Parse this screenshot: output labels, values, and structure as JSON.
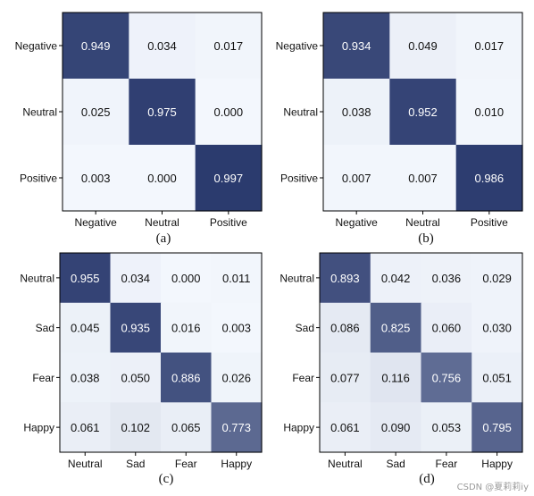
{
  "watermark": "CSDN @夏莉莉iy",
  "chart_data": [
    {
      "type": "heatmap",
      "caption": "(a)",
      "x_categories": [
        "Negative",
        "Neutral",
        "Positive"
      ],
      "y_categories": [
        "Negative",
        "Neutral",
        "Positive"
      ],
      "values": [
        [
          0.949,
          0.034,
          0.017
        ],
        [
          0.025,
          0.975,
          0.0
        ],
        [
          0.003,
          0.0,
          0.997
        ]
      ],
      "colormap": [
        "#f3f7fd",
        "#2a3a6e"
      ]
    },
    {
      "type": "heatmap",
      "caption": "(b)",
      "x_categories": [
        "Negative",
        "Neutral",
        "Positive"
      ],
      "y_categories": [
        "Negative",
        "Neutral",
        "Positive"
      ],
      "values": [
        [
          0.934,
          0.049,
          0.017
        ],
        [
          0.038,
          0.952,
          0.01
        ],
        [
          0.007,
          0.007,
          0.986
        ]
      ],
      "colormap": [
        "#f3f7fd",
        "#2a3a6e"
      ]
    },
    {
      "type": "heatmap",
      "caption": "(c)",
      "x_categories": [
        "Neutral",
        "Sad",
        "Fear",
        "Happy"
      ],
      "y_categories": [
        "Neutral",
        "Sad",
        "Fear",
        "Happy"
      ],
      "values": [
        [
          0.955,
          0.034,
          0.0,
          0.011
        ],
        [
          0.045,
          0.935,
          0.016,
          0.003
        ],
        [
          0.038,
          0.05,
          0.886,
          0.026
        ],
        [
          0.061,
          0.102,
          0.065,
          0.773
        ]
      ],
      "colormap": [
        "#f3f7fd",
        "#2a3a6e"
      ]
    },
    {
      "type": "heatmap",
      "caption": "(d)",
      "x_categories": [
        "Neutral",
        "Sad",
        "Fear",
        "Happy"
      ],
      "y_categories": [
        "Neutral",
        "Sad",
        "Fear",
        "Happy"
      ],
      "values": [
        [
          0.893,
          0.042,
          0.036,
          0.029
        ],
        [
          0.086,
          0.825,
          0.06,
          0.03
        ],
        [
          0.077,
          0.116,
          0.756,
          0.051
        ],
        [
          0.061,
          0.09,
          0.053,
          0.795
        ]
      ],
      "colormap": [
        "#f3f7fd",
        "#2a3a6e"
      ]
    }
  ]
}
